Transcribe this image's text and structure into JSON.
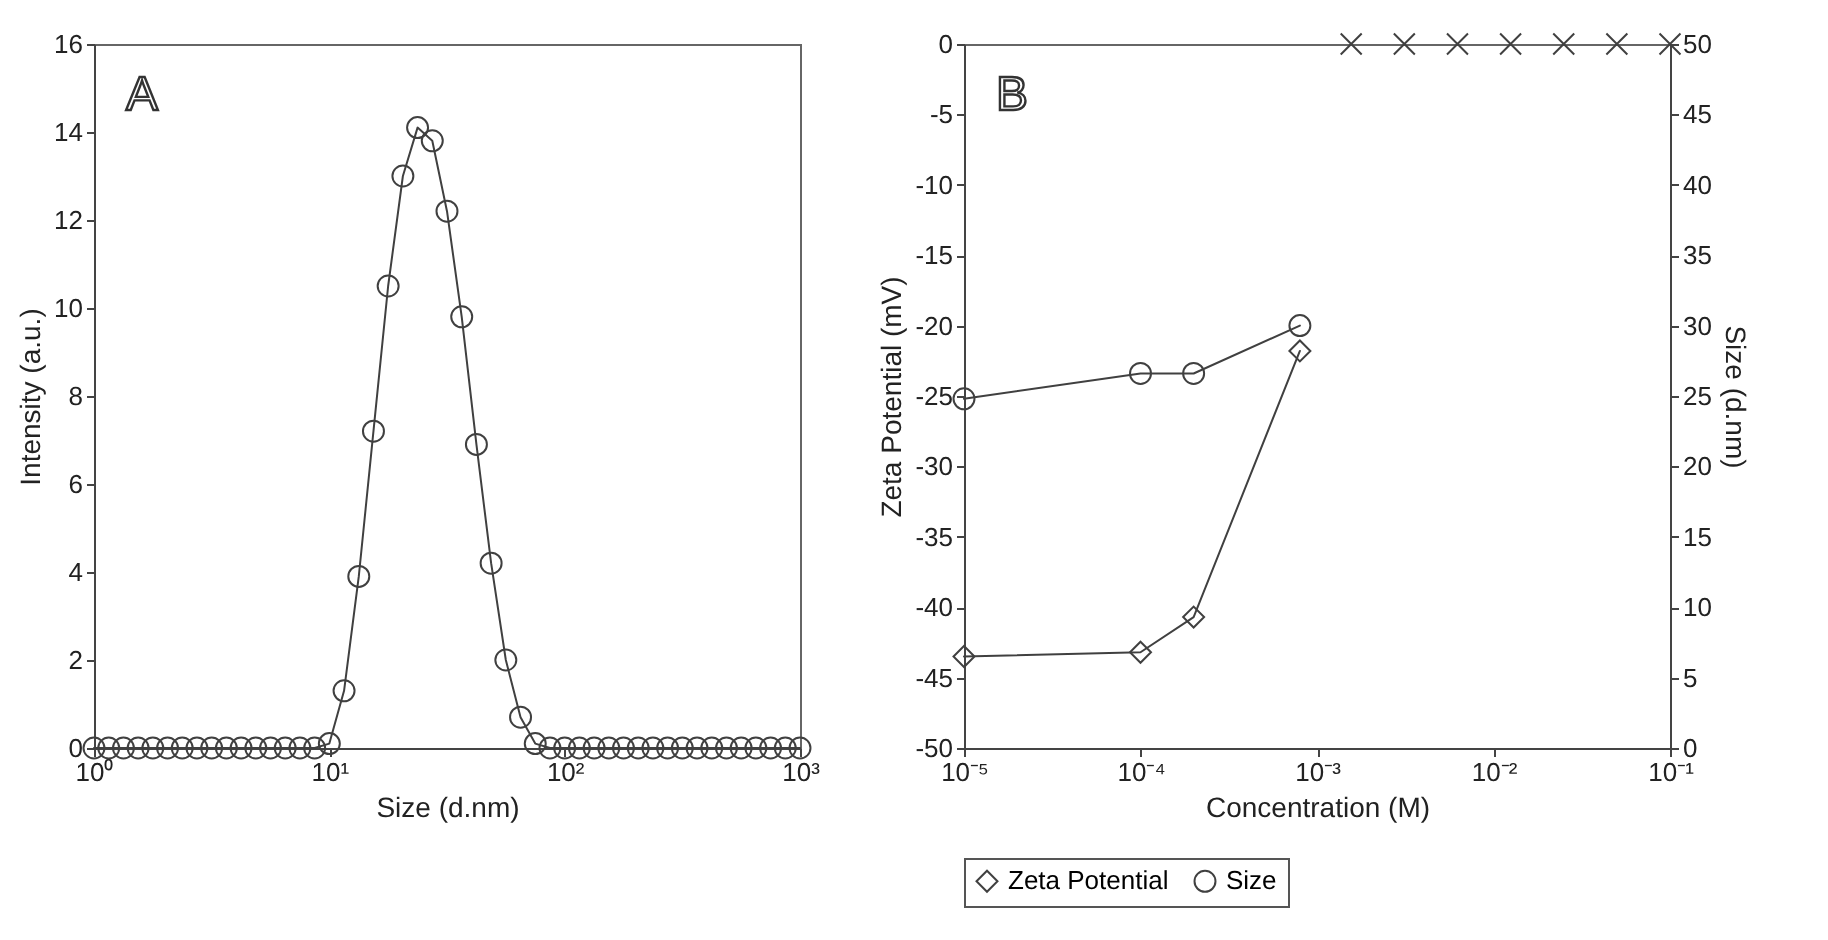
{
  "chart_data": [
    {
      "type": "line",
      "xlabel": "Size (d.nm)",
      "ylabel": "Intensity (a.u.)",
      "annotations": [
        "A"
      ],
      "log": "x",
      "grid": false,
      "marker": "circle",
      "x": [
        1,
        1.155,
        1.334,
        1.54,
        1.778,
        2.054,
        2.371,
        2.738,
        3.162,
        3.652,
        4.217,
        4.87,
        5.623,
        6.494,
        7.499,
        8.66,
        10,
        11.55,
        13.34,
        15.4,
        17.78,
        20.54,
        23.71,
        27.38,
        31.62,
        36.52,
        42.17,
        48.7,
        56.23,
        64.94,
        74.99,
        86.6,
        100,
        115.5,
        133.4,
        154.0,
        177.8,
        205.4,
        237.1,
        273.8,
        316.2,
        365.2,
        421.7,
        487.0,
        562.3,
        649.4,
        749.9,
        866.0,
        1000
      ],
      "series": [
        {
          "color": "#404040",
          "values": [
            0,
            0,
            0,
            0,
            0,
            0,
            0,
            0,
            0,
            0,
            0,
            0,
            0,
            0,
            0,
            0,
            0.1,
            1.3,
            3.9,
            7.2,
            10.5,
            13.0,
            14.1,
            13.8,
            12.2,
            9.8,
            6.9,
            4.2,
            2.0,
            0.7,
            0.1,
            0,
            0,
            0,
            0,
            0,
            0,
            0,
            0,
            0,
            0,
            0,
            0,
            0,
            0,
            0,
            0,
            0,
            0
          ]
        }
      ],
      "xlim": [
        1,
        1000
      ],
      "xticks": [
        {
          "value": 1,
          "label": "10⁰"
        },
        {
          "value": 10,
          "label": "10¹"
        },
        {
          "value": 100,
          "label": "10²"
        },
        {
          "value": 1000,
          "label": "10³"
        }
      ],
      "ylim": [
        0,
        16
      ],
      "yticks": [
        0,
        2,
        4,
        6,
        8,
        10,
        12,
        14,
        16
      ]
    },
    {
      "type": "line",
      "xlabel": "Concentration (M)",
      "ylabel": "Zeta Potential (mV)",
      "y2label": "Size (d.nm)",
      "annotations": [
        "B"
      ],
      "log": "x",
      "grid": false,
      "legend": "bottom",
      "series": [
        {
          "name": "Zeta Potential",
          "color": "#404040",
          "marker": "diamond",
          "x": [
            1e-05,
            0.0001,
            0.0002,
            0.0008
          ],
          "values": [
            -43.5,
            -43.2,
            -40.7,
            -21.8
          ]
        },
        {
          "name": "Size",
          "color": "#404040",
          "marker": "circle",
          "axis": "y2",
          "x": [
            1e-05,
            0.0001,
            0.0002,
            0.0008
          ],
          "values": [
            24.8,
            26.6,
            26.6,
            30.0
          ]
        },
        {
          "type": "scatter",
          "color": "#404040",
          "marker": "cross",
          "x": [
            0.0015625,
            0.003125,
            0.00625,
            0.0125,
            0.025,
            0.05,
            0.1
          ],
          "values": [
            0,
            0,
            0,
            0,
            0,
            0,
            0
          ]
        }
      ],
      "xlim": [
        1e-05,
        0.1
      ],
      "xticks": [
        {
          "value": 1e-05,
          "label": "10⁻⁵"
        },
        {
          "value": 0.0001,
          "label": "10⁻⁴"
        },
        {
          "value": 0.001,
          "label": "10⁻³"
        },
        {
          "value": 0.01,
          "label": "10⁻²"
        },
        {
          "value": 0.1,
          "label": "10⁻¹"
        }
      ],
      "ylim": [
        -50,
        0
      ],
      "yticks": [
        -50,
        -45,
        -40,
        -35,
        -30,
        -25,
        -20,
        -15,
        -10,
        -5,
        0
      ],
      "y2lim": [
        0,
        50
      ],
      "y2ticks": [
        0,
        5,
        10,
        15,
        20,
        25,
        30,
        35,
        40,
        45,
        50
      ]
    }
  ]
}
